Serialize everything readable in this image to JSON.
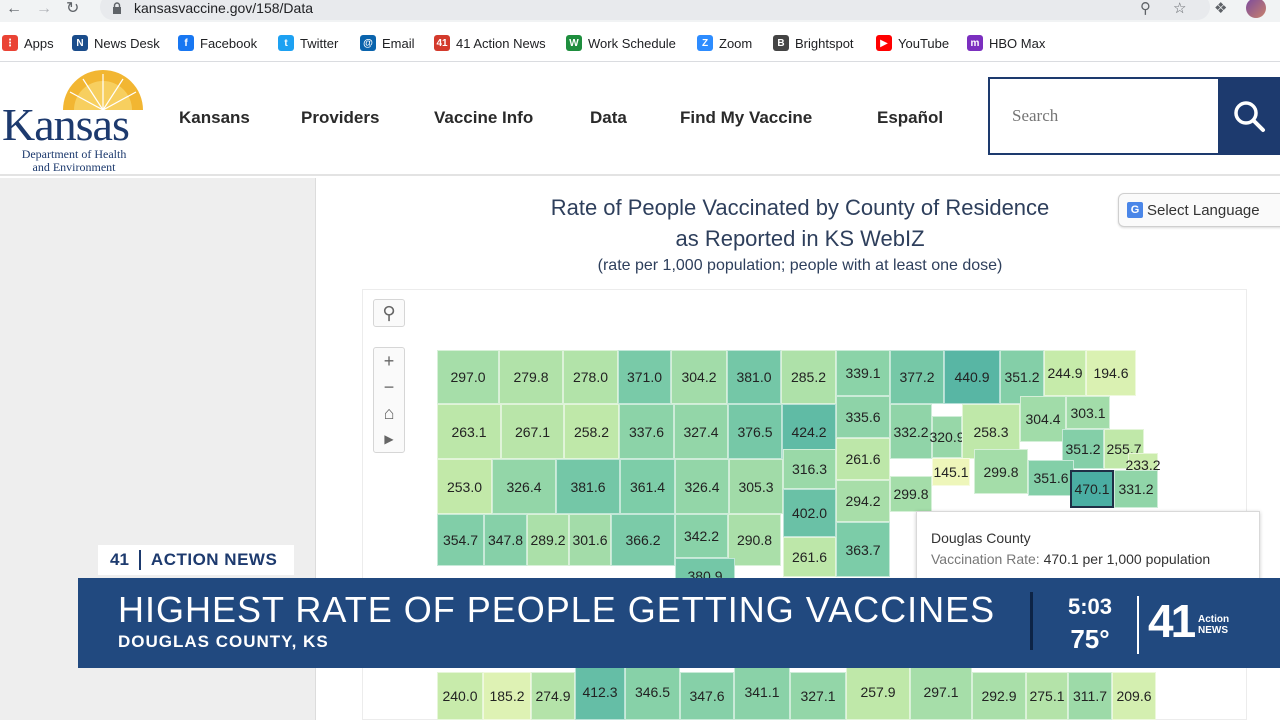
{
  "browser": {
    "url": "kansasvaccine.gov/158/Data",
    "bookmarks": [
      {
        "label": "Apps",
        "icon": "apps-grid-icon",
        "color": "#ea4335"
      },
      {
        "label": "News Desk",
        "icon": "news-desk-icon",
        "color": "#1a4c8b"
      },
      {
        "label": "Facebook",
        "icon": "facebook-icon",
        "color": "#1877f2"
      },
      {
        "label": "Twitter",
        "icon": "twitter-icon",
        "color": "#1da1f2"
      },
      {
        "label": "Email",
        "icon": "email-icon",
        "color": "#0a64ad"
      },
      {
        "label": "41 Action News",
        "icon": "action-news-icon",
        "color": "#d33a2c"
      },
      {
        "label": "Work Schedule",
        "icon": "work-schedule-icon",
        "color": "#1e8e3e"
      },
      {
        "label": "Zoom",
        "icon": "zoom-icon",
        "color": "#2d8cff"
      },
      {
        "label": "Brightspot",
        "icon": "brightspot-icon",
        "color": "#444444"
      },
      {
        "label": "YouTube",
        "icon": "youtube-icon",
        "color": "#ff0000"
      },
      {
        "label": "HBO Max",
        "icon": "hbo-max-icon",
        "color": "#7b2fbf"
      }
    ]
  },
  "site": {
    "logo_word": "Kansas",
    "logo_sub": "Department of Health and Environment",
    "nav": [
      "Kansans",
      "Providers",
      "Vaccine Info",
      "Data",
      "Find My Vaccine",
      "Español"
    ],
    "search_placeholder": "Search",
    "brand_color": "#1d3a6e"
  },
  "content": {
    "title_line1": "Rate of People Vaccinated by County of Residence",
    "title_line2": "as Reported in KS WebIZ",
    "subtitle": "(rate per 1,000 population; people with at least one dose)",
    "language_label": "Select Language"
  },
  "map": {
    "counties": [
      {
        "value": "297.0"
      },
      {
        "value": "279.8"
      },
      {
        "value": "278.0"
      },
      {
        "value": "371.0"
      },
      {
        "value": "304.2"
      },
      {
        "value": "381.0"
      },
      {
        "value": "285.2"
      },
      {
        "value": "339.1"
      },
      {
        "value": "377.2"
      },
      {
        "value": "440.9"
      },
      {
        "value": "351.2"
      },
      {
        "value": "244.9"
      },
      {
        "value": "194.6"
      },
      {
        "value": "263.1"
      },
      {
        "value": "267.1"
      },
      {
        "value": "258.2"
      },
      {
        "value": "337.6"
      },
      {
        "value": "327.4"
      },
      {
        "value": "376.5"
      },
      {
        "value": "424.2"
      },
      {
        "value": "335.6"
      },
      {
        "value": "332.2"
      },
      {
        "value": "320.9"
      },
      {
        "value": "258.3"
      },
      {
        "value": "304.4"
      },
      {
        "value": "303.1"
      },
      {
        "value": "261.6"
      },
      {
        "value": "351.2"
      },
      {
        "value": "255.7"
      },
      {
        "value": "233.2"
      },
      {
        "value": "253.0"
      },
      {
        "value": "326.4"
      },
      {
        "value": "381.6"
      },
      {
        "value": "361.4"
      },
      {
        "value": "326.4"
      },
      {
        "value": "305.3"
      },
      {
        "value": "316.3"
      },
      {
        "value": "145.1"
      },
      {
        "value": "299.8"
      },
      {
        "value": "351.6"
      },
      {
        "value": "470.1"
      },
      {
        "value": "331.2"
      },
      {
        "value": "294.2"
      },
      {
        "value": "299.8"
      },
      {
        "value": "402.0"
      },
      {
        "value": "354.7"
      },
      {
        "value": "347.8"
      },
      {
        "value": "289.2"
      },
      {
        "value": "301.6"
      },
      {
        "value": "366.2"
      },
      {
        "value": "342.2"
      },
      {
        "value": "290.8"
      },
      {
        "value": "261.6"
      },
      {
        "value": "363.7"
      },
      {
        "value": "380.9"
      },
      {
        "value": "240.0"
      },
      {
        "value": "185.2"
      },
      {
        "value": "274.9"
      },
      {
        "value": "412.3"
      },
      {
        "value": "346.5"
      },
      {
        "value": "347.6"
      },
      {
        "value": "341.1"
      },
      {
        "value": "327.1"
      },
      {
        "value": "257.9"
      },
      {
        "value": "297.1"
      },
      {
        "value": "292.9"
      },
      {
        "value": "275.1"
      },
      {
        "value": "311.7"
      },
      {
        "value": "209.6"
      }
    ],
    "tooltip": {
      "county": "Douglas County",
      "label": "Vaccination Rate:",
      "value": "470.1 per 1,000 population"
    }
  },
  "news": {
    "tag_number": "41",
    "tag_name": "ACTION NEWS",
    "headline": "HIGHEST RATE OF PEOPLE GETTING VACCINES",
    "subline": "DOUGLAS COUNTY, KS",
    "time": "5:03",
    "temperature": "75°",
    "logo_number": "41",
    "logo_line1": "Action",
    "logo_line2": "NEWS",
    "bar_color": "#21497f"
  }
}
